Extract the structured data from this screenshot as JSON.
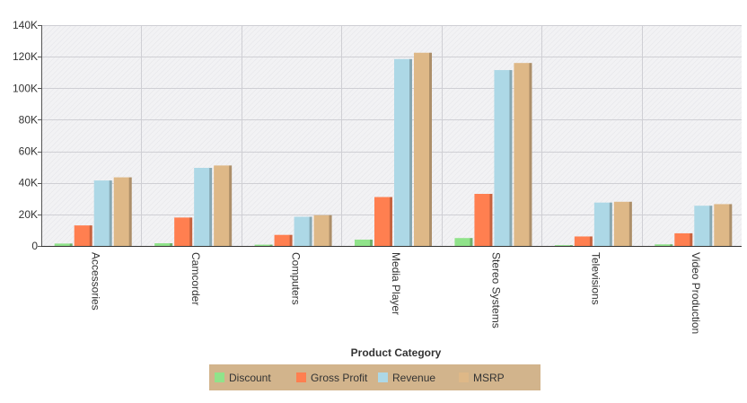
{
  "chart_data": {
    "type": "bar",
    "title": "",
    "xlabel": "Product Category",
    "ylabel": "",
    "categories": [
      "Accessories",
      "Camcorder",
      "Computers",
      "Media Player",
      "Stereo Systems",
      "Televisions",
      "Video Production"
    ],
    "series": [
      {
        "name": "Discount",
        "color": "#90e38a",
        "values": [
          1500,
          1700,
          800,
          4000,
          5000,
          500,
          1000
        ]
      },
      {
        "name": "Gross Profit",
        "color": "#ff7f50",
        "values": [
          13000,
          18000,
          7000,
          31000,
          33000,
          6000,
          8000
        ]
      },
      {
        "name": "Revenue",
        "color": "#add8e6",
        "values": [
          41500,
          49500,
          18500,
          118500,
          111500,
          27500,
          25500
        ]
      },
      {
        "name": "MSRP",
        "color": "#deb887",
        "values": [
          43500,
          51000,
          19500,
          122500,
          116000,
          28000,
          26500
        ]
      }
    ],
    "ylim": [
      0,
      140000
    ],
    "yticks": [
      0,
      20000,
      40000,
      60000,
      80000,
      100000,
      120000,
      140000
    ],
    "ytick_labels": [
      "0",
      "20K",
      "40K",
      "60K",
      "80K",
      "100K",
      "120K",
      "140K"
    ],
    "grid": true,
    "legend": "bottom-center",
    "legend_bg": "#d2b48c"
  }
}
